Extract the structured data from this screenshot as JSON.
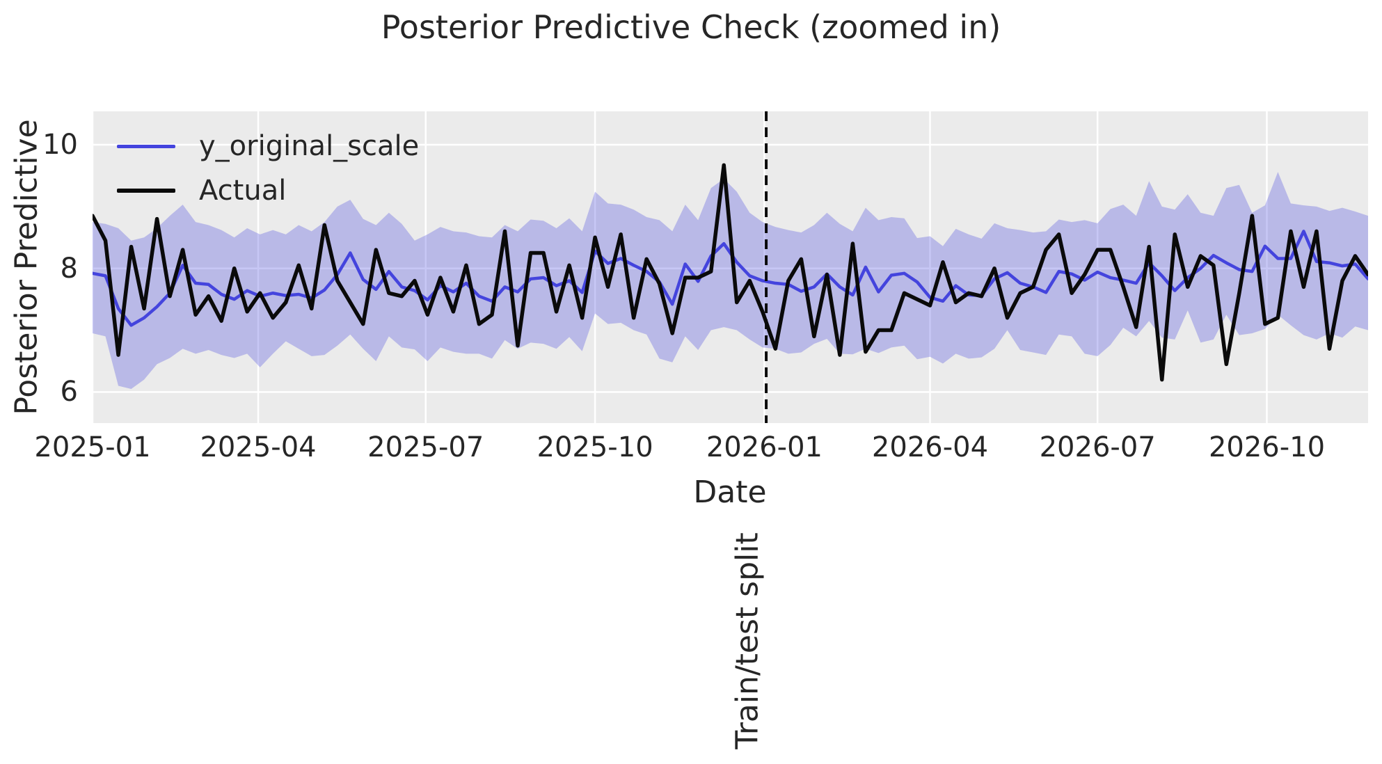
{
  "figure": {
    "title": "Posterior Predictive Check (zoomed in)"
  },
  "legend": {
    "items": [
      {
        "label": "y_original_scale",
        "color": "#4444dd"
      },
      {
        "label": "Actual",
        "color": "#0a0a0a"
      }
    ]
  },
  "axes": {
    "xlabel": "Date",
    "ylabel": "Posterior Predictive"
  },
  "annotation": {
    "label": "Train/test split"
  },
  "chart_data": {
    "type": "line",
    "title": "Posterior Predictive Check (zoomed in)",
    "xlabel": "Date",
    "ylabel": "Posterior Predictive",
    "plot_bg": "#ebebeb",
    "grid": true,
    "grid_color": "#ffffff",
    "legend_position": "upper-left",
    "x_unit": "days since 2025-01-01, weekly data points (step 7 days)",
    "x_start_day": 0,
    "x_step_days": 7,
    "n_points": 100,
    "x_total_days": 693,
    "x_ticks": [
      {
        "day": 0,
        "label": "2025-01"
      },
      {
        "day": 90,
        "label": "2025-04"
      },
      {
        "day": 181,
        "label": "2025-07"
      },
      {
        "day": 273,
        "label": "2025-10"
      },
      {
        "day": 365,
        "label": "2026-01"
      },
      {
        "day": 455,
        "label": "2026-04"
      },
      {
        "day": 546,
        "label": "2026-07"
      },
      {
        "day": 638,
        "label": "2026-10"
      }
    ],
    "y_ticks": [
      6,
      8,
      10
    ],
    "ylim": [
      5.5,
      10.54
    ],
    "split": {
      "day": 366,
      "label": "Train/test split",
      "style": "dashed-black"
    },
    "series": [
      {
        "name": "y_original_scale",
        "color": "#4444dd",
        "width": 4.5,
        "values": [
          7.92,
          7.88,
          7.35,
          7.08,
          7.2,
          7.38,
          7.6,
          8.05,
          7.76,
          7.74,
          7.58,
          7.5,
          7.64,
          7.55,
          7.6,
          7.56,
          7.58,
          7.52,
          7.65,
          7.9,
          8.25,
          7.82,
          7.66,
          7.95,
          7.7,
          7.64,
          7.49,
          7.72,
          7.62,
          7.76,
          7.55,
          7.47,
          7.7,
          7.62,
          7.83,
          7.85,
          7.72,
          7.8,
          7.61,
          8.28,
          8.08,
          8.16,
          8.05,
          7.95,
          7.78,
          7.42,
          8.07,
          7.79,
          8.2,
          8.4,
          8.1,
          7.88,
          7.8,
          7.76,
          7.74,
          7.63,
          7.7,
          7.91,
          7.7,
          7.57,
          8.02,
          7.62,
          7.89,
          7.92,
          7.78,
          7.53,
          7.47,
          7.72,
          7.57,
          7.56,
          7.83,
          7.93,
          7.76,
          7.7,
          7.61,
          7.95,
          7.91,
          7.81,
          7.94,
          7.85,
          7.81,
          7.76,
          8.09,
          7.88,
          7.64,
          7.85,
          8.0,
          8.21,
          8.09,
          7.98,
          7.95,
          8.36,
          8.16,
          8.16,
          8.6,
          8.11,
          8.09,
          8.04,
          8.07,
          7.83
        ]
      },
      {
        "name": "Actual",
        "color": "#0a0a0a",
        "width": 5.5,
        "values": [
          8.85,
          8.45,
          6.6,
          8.35,
          7.35,
          8.8,
          7.55,
          8.3,
          7.25,
          7.55,
          7.15,
          8.0,
          7.3,
          7.6,
          7.2,
          7.45,
          8.05,
          7.35,
          8.7,
          7.8,
          7.45,
          7.1,
          8.3,
          7.6,
          7.55,
          7.8,
          7.25,
          7.85,
          7.3,
          8.05,
          7.1,
          7.25,
          8.6,
          6.75,
          8.25,
          8.25,
          7.3,
          8.05,
          7.2,
          8.5,
          7.7,
          8.55,
          7.2,
          8.15,
          7.75,
          6.95,
          7.85,
          7.85,
          7.95,
          9.67,
          7.45,
          7.8,
          7.3,
          6.7,
          7.8,
          8.15,
          6.9,
          7.9,
          6.6,
          8.4,
          6.65,
          7.0,
          7.0,
          7.6,
          7.5,
          7.4,
          8.1,
          7.45,
          7.6,
          7.55,
          8.0,
          7.2,
          7.6,
          7.7,
          8.3,
          8.55,
          7.6,
          7.9,
          8.3,
          8.3,
          7.7,
          7.05,
          8.35,
          6.2,
          8.55,
          7.7,
          8.2,
          8.05,
          6.45,
          7.6,
          8.85,
          7.1,
          7.2,
          8.6,
          7.7,
          8.6,
          6.7,
          7.8,
          8.2,
          7.9
        ]
      }
    ],
    "band": {
      "name": "credible-interval",
      "color": "#4444dd",
      "opacity": 0.3,
      "upper": [
        8.75,
        8.72,
        8.65,
        8.45,
        8.5,
        8.65,
        8.85,
        9.03,
        8.75,
        8.7,
        8.62,
        8.5,
        8.65,
        8.55,
        8.62,
        8.55,
        8.7,
        8.6,
        8.75,
        9.0,
        9.11,
        8.8,
        8.7,
        8.9,
        8.72,
        8.45,
        8.55,
        8.67,
        8.6,
        8.58,
        8.52,
        8.5,
        8.7,
        8.6,
        8.79,
        8.77,
        8.65,
        8.81,
        8.6,
        9.24,
        9.05,
        9.03,
        8.95,
        8.83,
        8.78,
        8.6,
        9.03,
        8.78,
        9.3,
        9.45,
        9.24,
        8.9,
        8.75,
        8.67,
        8.62,
        8.58,
        8.7,
        8.9,
        8.72,
        8.6,
        8.98,
        8.78,
        8.83,
        8.81,
        8.49,
        8.52,
        8.36,
        8.64,
        8.55,
        8.48,
        8.73,
        8.65,
        8.62,
        8.58,
        8.6,
        8.79,
        8.75,
        8.78,
        8.73,
        8.96,
        9.03,
        8.85,
        9.41,
        9.0,
        8.95,
        9.2,
        8.9,
        8.85,
        9.3,
        9.35,
        8.9,
        9.02,
        9.56,
        9.05,
        9.02,
        9.0,
        8.93,
        8.98,
        8.92,
        8.85
      ],
      "lower": [
        6.95,
        6.9,
        6.1,
        6.05,
        6.2,
        6.45,
        6.55,
        6.7,
        6.62,
        6.68,
        6.6,
        6.55,
        6.62,
        6.4,
        6.62,
        6.82,
        6.7,
        6.58,
        6.6,
        6.75,
        6.93,
        6.7,
        6.5,
        6.9,
        6.72,
        6.69,
        6.5,
        6.72,
        6.65,
        6.62,
        6.62,
        6.54,
        6.84,
        6.7,
        6.8,
        6.78,
        6.7,
        6.89,
        6.66,
        7.27,
        7.1,
        7.12,
        7.0,
        6.93,
        6.54,
        6.48,
        6.9,
        6.68,
        7.0,
        7.05,
        7.0,
        6.85,
        6.72,
        6.7,
        6.62,
        6.64,
        6.78,
        6.86,
        6.62,
        6.61,
        6.7,
        6.63,
        6.72,
        6.75,
        6.53,
        6.57,
        6.46,
        6.62,
        6.54,
        6.56,
        6.7,
        7.0,
        6.68,
        6.64,
        6.6,
        6.93,
        6.9,
        6.62,
        6.58,
        6.76,
        7.04,
        6.9,
        7.15,
        6.88,
        6.85,
        7.32,
        6.8,
        6.85,
        7.25,
        6.92,
        6.95,
        7.02,
        7.25,
        7.08,
        6.92,
        6.85,
        6.95,
        6.88,
        7.06,
        7.0
      ]
    }
  }
}
